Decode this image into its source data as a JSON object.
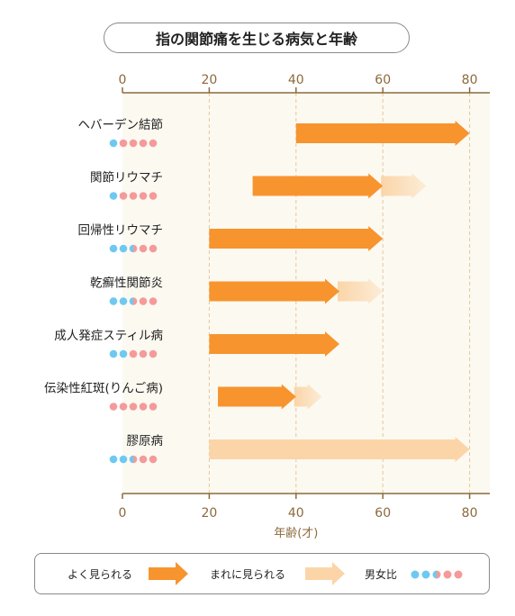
{
  "title": "指の関節痛を生じる病気と年齢",
  "chart_data": {
    "type": "bar",
    "subtype": "horizontal-range-arrows",
    "title": "指の関節痛を生じる病気と年齢",
    "xlabel": "年齢(才)",
    "xlim": [
      0,
      85
    ],
    "xticks": [
      0,
      20,
      40,
      60,
      80
    ],
    "grid": true,
    "diseases": [
      {
        "name": "ヘバーデン結節",
        "common": [
          40,
          80
        ],
        "occasional": null,
        "male": 1,
        "female": 4
      },
      {
        "name": "関節リウマチ",
        "common": [
          30,
          60
        ],
        "occasional": [
          60,
          70
        ],
        "male": 1,
        "female": 4
      },
      {
        "name": "回帰性リウマチ",
        "common": [
          20,
          60
        ],
        "occasional": null,
        "male": 2.5,
        "female": 2.5
      },
      {
        "name": "乾癬性関節炎",
        "common": [
          20,
          50
        ],
        "occasional": [
          50,
          60
        ],
        "male": 2.5,
        "female": 2.5
      },
      {
        "name": "成人発症スティル病",
        "common": [
          20,
          50
        ],
        "occasional": null,
        "male": 2,
        "female": 3
      },
      {
        "name": "伝染性紅斑(りんご病)",
        "common": [
          22,
          40
        ],
        "occasional": [
          40,
          46
        ],
        "male": 0,
        "female": 5
      },
      {
        "name": "膠原病",
        "common": null,
        "occasional": [
          20,
          80
        ],
        "male": 2.5,
        "female": 2.5
      }
    ]
  },
  "colors": {
    "common": "#f7942e",
    "occasional": "#fbd5a8",
    "male": "#6ec9f0",
    "female": "#f49a9a",
    "background": "#fcf9f1",
    "axis": "#8c6a3c",
    "grid": "#e2c9a0"
  },
  "legend": {
    "common_label": "よく見られる",
    "occasional_label": "まれに見られる",
    "ratio_label": "男女比"
  }
}
